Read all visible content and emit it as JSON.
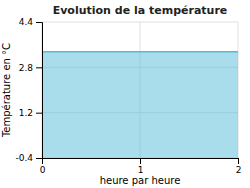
{
  "chart_data": {
    "type": "area",
    "title": "Evolution de la température",
    "xlabel": "heure par heure",
    "ylabel": "Température en °C",
    "x": [
      0,
      2
    ],
    "values": [
      3.35,
      3.35
    ],
    "color": "#55bbd8",
    "xlim": [
      0,
      2
    ],
    "ylim": [
      -0.4,
      4.4
    ],
    "xticks": [
      0,
      1,
      2
    ],
    "yticks": [
      -0.4,
      1.2,
      2.8,
      4.4
    ],
    "grid": true
  }
}
